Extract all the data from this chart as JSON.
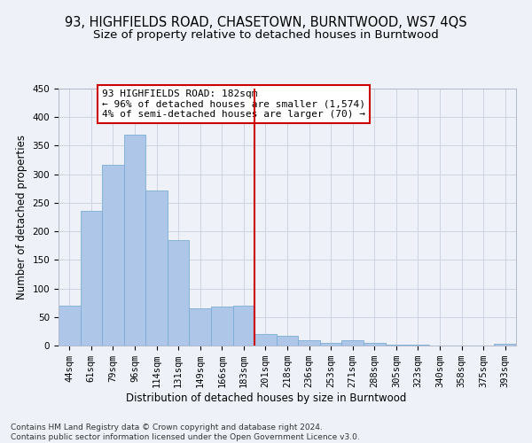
{
  "title": "93, HIGHFIELDS ROAD, CHASETOWN, BURNTWOOD, WS7 4QS",
  "subtitle": "Size of property relative to detached houses in Burntwood",
  "xlabel": "Distribution of detached houses by size in Burntwood",
  "ylabel": "Number of detached properties",
  "categories": [
    "44sqm",
    "61sqm",
    "79sqm",
    "96sqm",
    "114sqm",
    "131sqm",
    "149sqm",
    "166sqm",
    "183sqm",
    "201sqm",
    "218sqm",
    "236sqm",
    "253sqm",
    "271sqm",
    "288sqm",
    "305sqm",
    "323sqm",
    "340sqm",
    "358sqm",
    "375sqm",
    "393sqm"
  ],
  "values": [
    70,
    236,
    316,
    370,
    272,
    184,
    65,
    68,
    70,
    20,
    17,
    10,
    5,
    10,
    4,
    1,
    1,
    0,
    0,
    0,
    3
  ],
  "bar_color": "#aec6e8",
  "bar_edge_color": "#7aadd4",
  "vline_x": 8.5,
  "vline_color": "#cc0000",
  "annotation_text": "93 HIGHFIELDS ROAD: 182sqm\n← 96% of detached houses are smaller (1,574)\n4% of semi-detached houses are larger (70) →",
  "annotation_box_color": "#ffffff",
  "annotation_box_edge": "#cc0000",
  "ylim": [
    0,
    450
  ],
  "yticks": [
    0,
    50,
    100,
    150,
    200,
    250,
    300,
    350,
    400,
    450
  ],
  "footer": "Contains HM Land Registry data © Crown copyright and database right 2024.\nContains public sector information licensed under the Open Government Licence v3.0.",
  "background_color": "#eef2f8",
  "plot_background": "#eef2f8",
  "title_fontsize": 10.5,
  "subtitle_fontsize": 9.5,
  "axis_label_fontsize": 8.5,
  "tick_fontsize": 7.5,
  "annotation_fontsize": 8,
  "footer_fontsize": 6.5
}
